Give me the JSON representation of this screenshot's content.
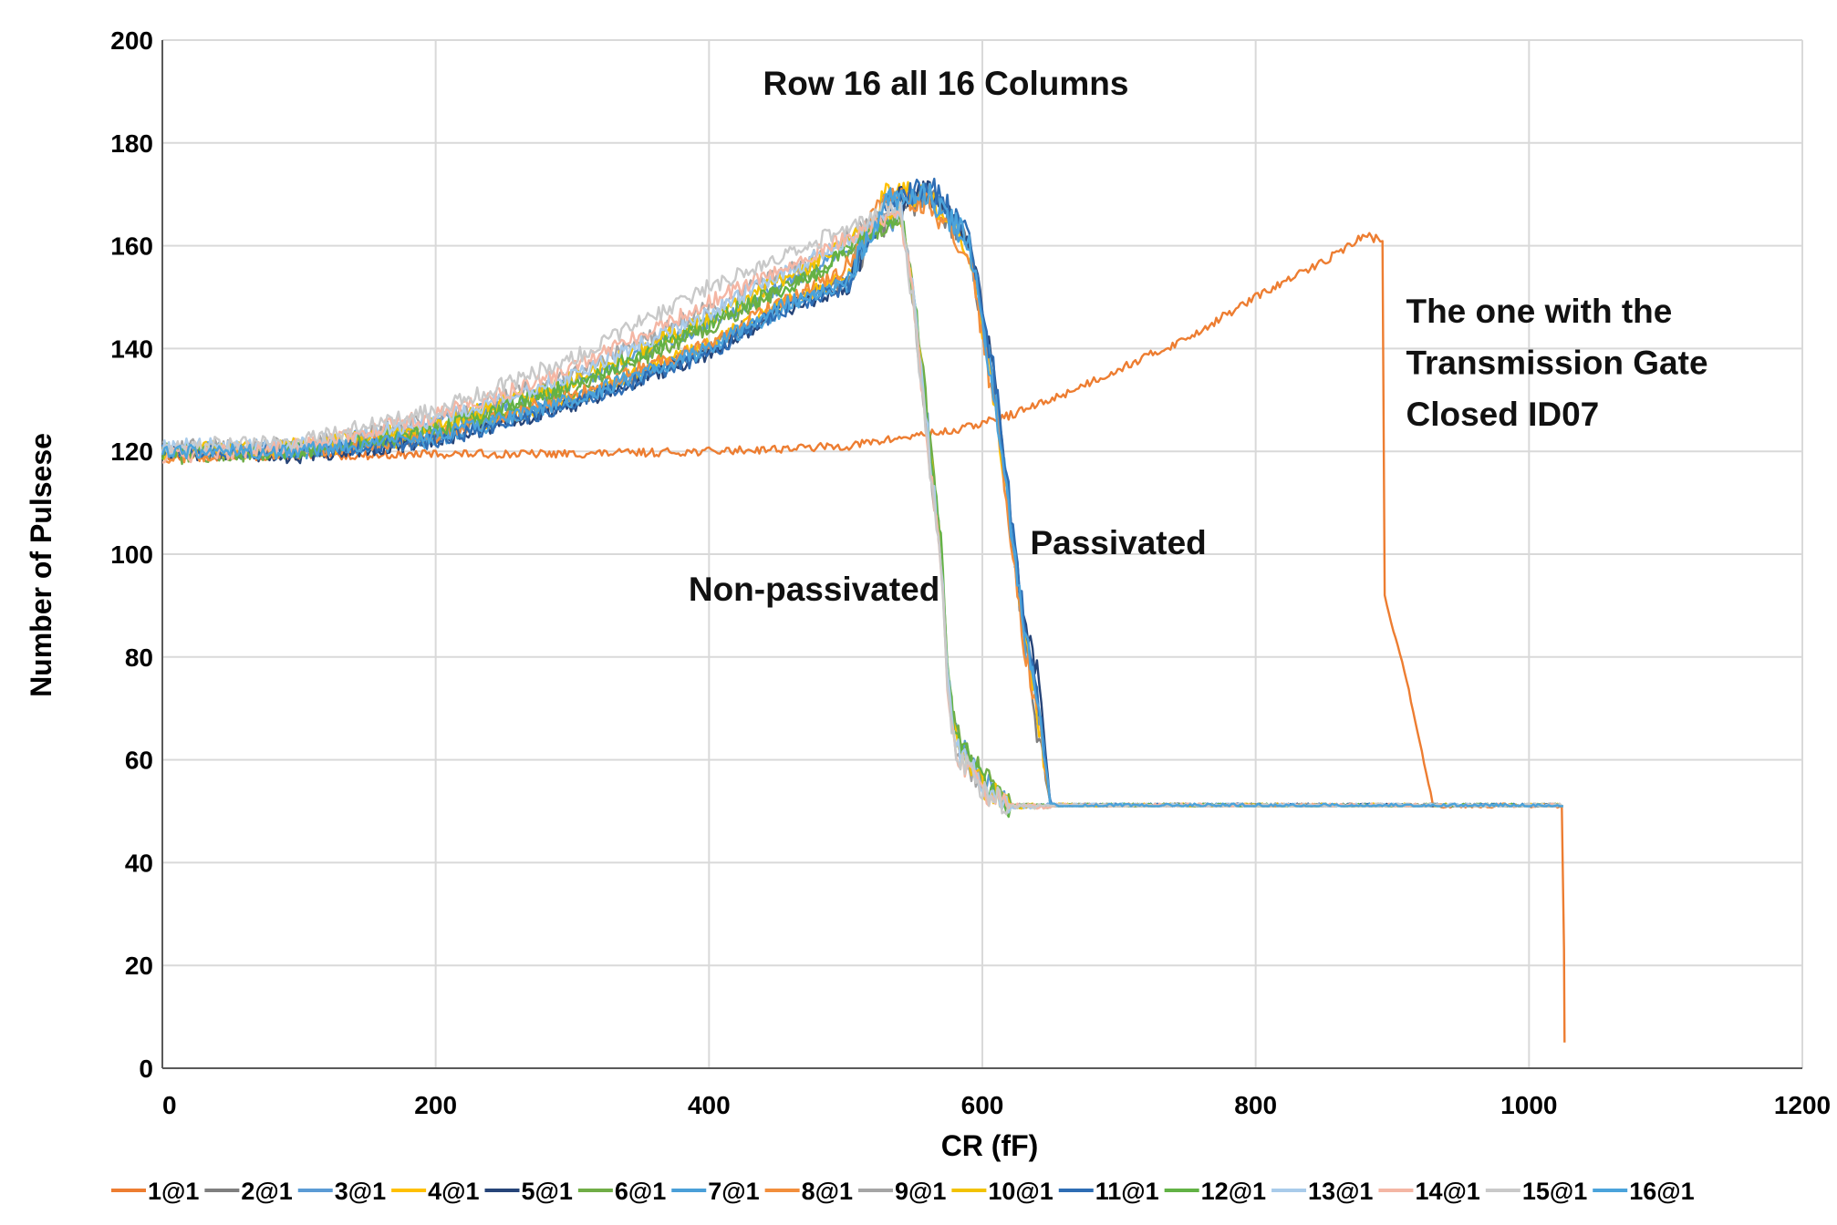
{
  "chart_data": {
    "type": "line",
    "title": "Row 16 all 16 Columns",
    "xlabel": "CR (fF)",
    "ylabel": "Number of Pulsese",
    "xlim": [
      0,
      1200
    ],
    "ylim": [
      0,
      200
    ],
    "x_ticks": [
      0,
      200,
      400,
      600,
      800,
      1000,
      1200
    ],
    "y_ticks": [
      0,
      20,
      40,
      60,
      80,
      100,
      120,
      140,
      160,
      180,
      200
    ],
    "grid": true,
    "legend_position": "bottom",
    "annotations": [
      {
        "text": "Non-passivated",
        "x": 385,
        "y": 91
      },
      {
        "text": "Passivated",
        "x": 635,
        "y": 100
      },
      {
        "text": "The one with the",
        "x": 910,
        "y": 145
      },
      {
        "text": "Transmission Gate",
        "x": 910,
        "y": 135
      },
      {
        "text": "Closed ID07",
        "x": 910,
        "y": 125
      }
    ],
    "series": [
      {
        "name": "1@1",
        "color": "#ED7D31",
        "group": "tg",
        "x": [
          0,
          100,
          200,
          300,
          400,
          500,
          550,
          580,
          620,
          650,
          700,
          750,
          800,
          850,
          880,
          893,
          894,
          910,
          930,
          1000,
          1025,
          1026
        ],
        "y": [
          119,
          119,
          119.5,
          119.5,
          120,
          121,
          123,
          124,
          127,
          130,
          136,
          142,
          150,
          157,
          162,
          161,
          92,
          76,
          51,
          51,
          51,
          5
        ]
      },
      {
        "name": "2@1",
        "color": "#7F7F7F",
        "group": "passivated",
        "x": [
          0,
          100,
          200,
          300,
          400,
          450,
          500,
          530,
          560,
          590,
          610,
          630,
          640,
          650,
          700,
          800,
          900,
          1000,
          1025
        ],
        "y": [
          120,
          120,
          123,
          130,
          140,
          148,
          153,
          165,
          170,
          160,
          130,
          85,
          66,
          51,
          51,
          51,
          51,
          51,
          51
        ]
      },
      {
        "name": "3@1",
        "color": "#5B9BD5",
        "group": "nonpass",
        "x": [
          0,
          100,
          200,
          300,
          400,
          480,
          520,
          540,
          550,
          560,
          570,
          575,
          580,
          600,
          620,
          700,
          800,
          900,
          1000,
          1025
        ],
        "y": [
          120,
          121,
          125,
          133,
          145,
          156,
          163,
          165,
          150,
          125,
          100,
          75,
          65,
          56,
          51,
          51,
          51,
          51,
          51,
          51
        ]
      },
      {
        "name": "4@1",
        "color": "#FFC000",
        "group": "passivated",
        "x": [
          0,
          100,
          200,
          300,
          400,
          450,
          500,
          530,
          560,
          590,
          610,
          630,
          640,
          650,
          700,
          800,
          900,
          1000,
          1025
        ],
        "y": [
          120,
          120,
          123,
          130,
          141,
          148,
          154,
          170,
          170,
          160,
          128,
          85,
          70,
          51,
          51,
          51,
          51,
          51,
          51
        ]
      },
      {
        "name": "5@1",
        "color": "#264478",
        "group": "passivated",
        "x": [
          0,
          100,
          200,
          300,
          400,
          450,
          500,
          530,
          560,
          590,
          610,
          630,
          640,
          650,
          700,
          800,
          900,
          1000,
          1025
        ],
        "y": [
          120,
          119,
          122,
          129,
          139,
          147,
          152,
          168,
          171,
          162,
          132,
          86,
          78,
          51,
          51,
          51,
          51,
          51,
          51
        ]
      },
      {
        "name": "6@1",
        "color": "#70AD47",
        "group": "nonpass",
        "x": [
          0,
          100,
          200,
          300,
          400,
          480,
          520,
          540,
          550,
          560,
          570,
          575,
          580,
          600,
          620,
          700,
          800,
          900,
          1000,
          1025
        ],
        "y": [
          119,
          120,
          124,
          132,
          144,
          155,
          162,
          166,
          152,
          126,
          101,
          76,
          66,
          57,
          51,
          51,
          51,
          51,
          51,
          51
        ]
      },
      {
        "name": "7@1",
        "color": "#4A9FD8",
        "group": "passivated",
        "x": [
          0,
          100,
          200,
          300,
          400,
          450,
          500,
          530,
          560,
          590,
          610,
          630,
          640,
          650,
          700,
          800,
          900,
          1000,
          1025
        ],
        "y": [
          120,
          120,
          122,
          130,
          140,
          147,
          153,
          169,
          170,
          161,
          130,
          84,
          72,
          51,
          51,
          51,
          51,
          51,
          51
        ]
      },
      {
        "name": "8@1",
        "color": "#F28E3C",
        "group": "passivated",
        "x": [
          0,
          100,
          200,
          300,
          400,
          450,
          500,
          530,
          560,
          590,
          610,
          630,
          640,
          650,
          700,
          800,
          900,
          1000,
          1025
        ],
        "y": [
          119,
          120,
          123,
          131,
          141,
          149,
          155,
          170,
          168,
          158,
          127,
          83,
          70,
          51,
          51,
          51,
          51,
          51,
          51
        ]
      },
      {
        "name": "9@1",
        "color": "#A5A5A5",
        "group": "nonpass",
        "x": [
          0,
          100,
          200,
          300,
          400,
          480,
          520,
          540,
          550,
          560,
          570,
          575,
          580,
          600,
          620,
          700,
          800,
          900,
          1000,
          1025
        ],
        "y": [
          121,
          121,
          126,
          135,
          148,
          158,
          165,
          168,
          148,
          122,
          98,
          74,
          63,
          55,
          51,
          51,
          51,
          51,
          51,
          51
        ]
      },
      {
        "name": "10@1",
        "color": "#F2C200",
        "group": "nonpass",
        "x": [
          0,
          100,
          200,
          300,
          400,
          480,
          520,
          540,
          550,
          560,
          570,
          575,
          580,
          600,
          620,
          700,
          800,
          900,
          1000,
          1025
        ],
        "y": [
          120,
          121,
          125,
          134,
          146,
          157,
          164,
          167,
          150,
          124,
          100,
          75,
          64,
          55,
          51,
          51,
          51,
          51,
          51,
          51
        ]
      },
      {
        "name": "11@1",
        "color": "#2E6DB4",
        "group": "passivated",
        "x": [
          0,
          100,
          200,
          300,
          400,
          450,
          500,
          530,
          560,
          590,
          610,
          630,
          640,
          650,
          700,
          800,
          900,
          1000,
          1025
        ],
        "y": [
          120,
          120,
          122,
          129,
          139,
          147,
          152,
          167,
          172,
          163,
          133,
          88,
          75,
          51,
          51,
          51,
          51,
          51,
          51
        ]
      },
      {
        "name": "12@1",
        "color": "#62B245",
        "group": "nonpass",
        "x": [
          0,
          100,
          200,
          300,
          400,
          480,
          520,
          540,
          550,
          560,
          570,
          575,
          580,
          600,
          620,
          700,
          800,
          900,
          1000,
          1025
        ],
        "y": [
          120,
          120,
          124,
          133,
          145,
          155,
          163,
          166,
          151,
          125,
          102,
          77,
          65,
          56,
          51,
          51,
          51,
          51,
          51,
          51
        ]
      },
      {
        "name": "13@1",
        "color": "#A9CBEA",
        "group": "nonpass",
        "x": [
          0,
          100,
          200,
          300,
          400,
          480,
          520,
          540,
          550,
          560,
          570,
          575,
          580,
          600,
          620,
          700,
          800,
          900,
          1000,
          1025
        ],
        "y": [
          121,
          121,
          126,
          135,
          147,
          158,
          164,
          167,
          149,
          123,
          99,
          74,
          63,
          55,
          51,
          51,
          51,
          51,
          51,
          51
        ]
      },
      {
        "name": "14@1",
        "color": "#F4B6A4",
        "group": "nonpass",
        "x": [
          0,
          100,
          200,
          300,
          400,
          480,
          520,
          540,
          550,
          560,
          570,
          575,
          580,
          600,
          620,
          700,
          800,
          900,
          1000,
          1025
        ],
        "y": [
          119,
          121,
          127,
          136,
          149,
          159,
          164,
          166,
          148,
          121,
          97,
          73,
          62,
          54,
          51,
          51,
          51,
          51,
          51,
          51
        ]
      },
      {
        "name": "15@1",
        "color": "#C9C9C9",
        "group": "nonpass",
        "x": [
          0,
          100,
          200,
          300,
          400,
          480,
          520,
          540,
          550,
          560,
          570,
          575,
          580,
          600,
          620,
          700,
          800,
          900,
          1000,
          1025
        ],
        "y": [
          121,
          122,
          128,
          138,
          152,
          161,
          166,
          168,
          147,
          121,
          96,
          72,
          62,
          54,
          51,
          51,
          51,
          51,
          51,
          51
        ]
      },
      {
        "name": "16@1",
        "color": "#4BA3DB",
        "group": "passivated",
        "x": [
          0,
          100,
          200,
          300,
          400,
          450,
          500,
          530,
          560,
          590,
          610,
          630,
          640,
          650,
          700,
          800,
          900,
          1000,
          1025
        ],
        "y": [
          120,
          120,
          123,
          130,
          140,
          148,
          153,
          168,
          170,
          161,
          129,
          86,
          73,
          51,
          51,
          51,
          51,
          51,
          51
        ]
      }
    ]
  }
}
